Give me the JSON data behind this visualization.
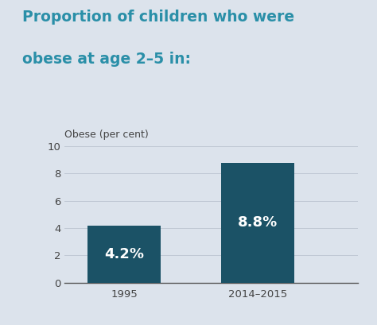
{
  "title_line1": "Proportion of children who were",
  "title_line2": "obese at age 2–5 in:",
  "ylabel": "Obese (per cent)",
  "categories": [
    "1995",
    "2014–2015"
  ],
  "values": [
    4.2,
    8.8
  ],
  "bar_labels": [
    "4.2%",
    "8.8%"
  ],
  "bar_color": "#1b5266",
  "title_color": "#2a8fa8",
  "background_color": "#dce3ec",
  "text_color": "#ffffff",
  "ylabel_color": "#444444",
  "tick_color": "#444444",
  "spine_color": "#555555",
  "grid_color": "#c0c8d4",
  "ylim": [
    0,
    10
  ],
  "yticks": [
    0,
    2,
    4,
    6,
    8,
    10
  ],
  "title_fontsize": 13.5,
  "ylabel_fontsize": 9,
  "bar_label_fontsize": 13,
  "tick_fontsize": 9.5
}
